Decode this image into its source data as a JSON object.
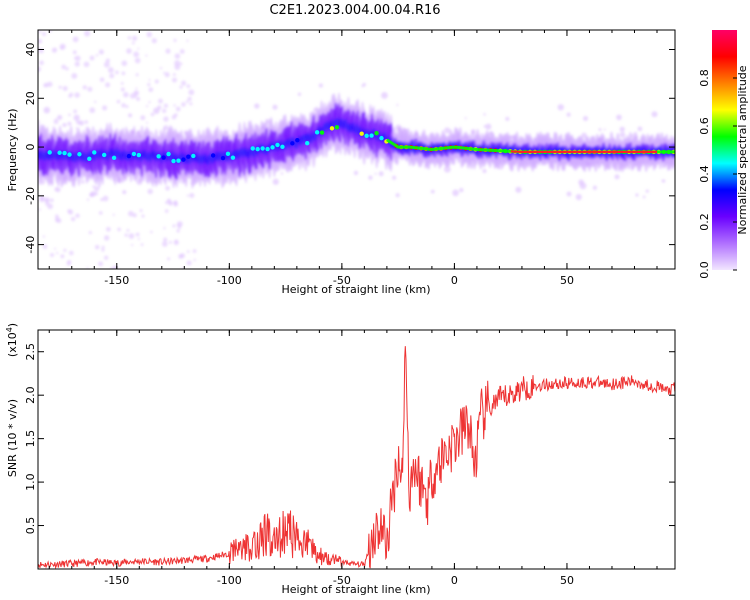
{
  "title": "C2E1.2023.004.00.04.R16",
  "chart_data": [
    {
      "type": "heatmap",
      "xlabel": "Height of straight line (km)",
      "ylabel": "Frequency (Hz)",
      "xlim": [
        -185,
        98
      ],
      "ylim": [
        -50,
        48
      ],
      "xticks": [
        -150,
        -100,
        -50,
        0,
        50
      ],
      "yticks": [
        -40,
        -20,
        0,
        20,
        40
      ],
      "colorbar": {
        "label": "Normalized spectral amplitude",
        "range": [
          0,
          1
        ],
        "ticks": [
          0.0,
          0.2,
          0.4,
          0.6,
          0.8
        ],
        "tick_labels": [
          "0.0",
          "0.2",
          "0.4",
          "0.6",
          "0.8"
        ],
        "colors": [
          "#f2e6ff",
          "#b070ff",
          "#6a00ff",
          "#0000ff",
          "#00ffff",
          "#00ff00",
          "#ffff00",
          "#ff8000",
          "#ff0000",
          "#ff0066"
        ]
      },
      "ridge": {
        "x": [
          -185,
          -170,
          -150,
          -130,
          -110,
          -95,
          -85,
          -75,
          -65,
          -55,
          -50,
          -45,
          -40,
          -35,
          -30,
          -25,
          -20,
          -10,
          0,
          10,
          30,
          50,
          70,
          90,
          98
        ],
        "y": [
          -3,
          -4,
          -3,
          -4,
          -5,
          -3,
          -1,
          1,
          3,
          9,
          10,
          8,
          6,
          5,
          3,
          0,
          0,
          -1,
          0,
          -1,
          -2,
          -2,
          -2,
          -2,
          -2
        ]
      }
    },
    {
      "type": "line",
      "xlabel": "Height of straight line (km)",
      "ylabel": "SNR (10 * v/v)",
      "scale_note": "(x10",
      "scale_exp": "4",
      "xlim": [
        -185,
        98
      ],
      "ylim": [
        0,
        2.75
      ],
      "xticks": [
        -150,
        -100,
        -50,
        0,
        50
      ],
      "yticks": [
        0.5,
        1.0,
        1.5,
        2.0,
        2.5
      ],
      "ytick_labels": [
        "0.5",
        "1.0",
        "1.5",
        "2.0",
        "2.5"
      ],
      "series": [
        {
          "color": "#ee3333",
          "x": [
            -185,
            -170,
            -160,
            -150,
            -140,
            -130,
            -120,
            -110,
            -100,
            -90,
            -85,
            -80,
            -75,
            -70,
            -65,
            -60,
            -55,
            -50,
            -45,
            -40,
            -36,
            -33,
            -30,
            -27,
            -25,
            -23,
            -22,
            -20,
            -18,
            -15,
            -12,
            -10,
            -7,
            -5,
            -2,
            0,
            3,
            6,
            9,
            12,
            15,
            20,
            25,
            30,
            40,
            50,
            60,
            70,
            80,
            85,
            90,
            95,
            98
          ],
          "y": [
            0.05,
            0.06,
            0.08,
            0.07,
            0.09,
            0.08,
            0.1,
            0.12,
            0.18,
            0.28,
            0.4,
            0.35,
            0.45,
            0.35,
            0.28,
            0.15,
            0.12,
            0.08,
            0.06,
            0.05,
            0.4,
            0.5,
            0.3,
            0.9,
            1.3,
            1.0,
            2.7,
            0.9,
            1.2,
            1.0,
            0.8,
            1.1,
            1.2,
            1.3,
            1.4,
            1.45,
            1.55,
            1.7,
            1.2,
            1.75,
            1.85,
            1.95,
            2.0,
            2.08,
            2.12,
            2.14,
            2.15,
            2.13,
            2.16,
            2.12,
            2.1,
            2.05,
            2.08
          ]
        }
      ]
    }
  ]
}
